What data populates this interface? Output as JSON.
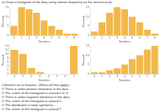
{
  "title": "(c) Draw a histogram of the data using relative frequency on the vertical scale.",
  "annotations": [
    "Comment on its features. (Select all that apply.)",
    "O There is some positive skewness in the data.",
    "O The center of the histogram is around 2 or 3.",
    "O There is some negative skewness in the data.",
    "O The center of the histogram is around 1.",
    "O The distribution is fairly symmetric.",
    "O The center of the histogram is around 7."
  ],
  "chart_data": [
    {
      "type": "bar",
      "xlabel": "Number",
      "ylabel": "Percent",
      "categories": [
        "0",
        "1",
        "2",
        "3",
        "4",
        "5",
        "6",
        "7",
        "8"
      ],
      "values": [
        5,
        15,
        14,
        12,
        8,
        5,
        3,
        1,
        1
      ],
      "color": "#f2b84b",
      "ylim": [
        0,
        15
      ],
      "yticks": [
        0,
        5,
        10,
        15
      ],
      "grid": false
    },
    {
      "type": "bar",
      "xlabel": "Number",
      "ylabel": "Percent",
      "categories": [
        "0",
        "1",
        "2",
        "3",
        "4",
        "5",
        "6",
        "7",
        "8"
      ],
      "values": [
        2,
        7,
        12,
        15,
        14,
        10,
        7,
        3,
        1
      ],
      "color": "#f2b84b",
      "ylim": [
        0,
        15
      ],
      "yticks": [
        0,
        5,
        10,
        15
      ],
      "grid": false
    },
    {
      "type": "bar",
      "xlabel": "Number",
      "ylabel": "Percent",
      "categories": [
        "0",
        "1",
        "2",
        "3",
        "4",
        "5",
        "6",
        "7"
      ],
      "values": [
        12,
        10,
        3,
        1,
        0,
        0,
        0,
        14
      ],
      "color": "#f2b84b",
      "ylim": [
        0,
        14
      ],
      "yticks": [
        0,
        2,
        4,
        6,
        8,
        10,
        12,
        14
      ],
      "grid": false
    },
    {
      "type": "bar",
      "xlabel": "Number",
      "ylabel": "Percent",
      "categories": [
        "0",
        "1",
        "2",
        "3",
        "4",
        "5",
        "6",
        "7",
        "8"
      ],
      "values": [
        1,
        1,
        2,
        3,
        5,
        8,
        10,
        13,
        15
      ],
      "color": "#f2b84b",
      "ylim": [
        0,
        15
      ],
      "yticks": [
        0,
        5,
        10,
        15
      ],
      "grid": false
    }
  ]
}
